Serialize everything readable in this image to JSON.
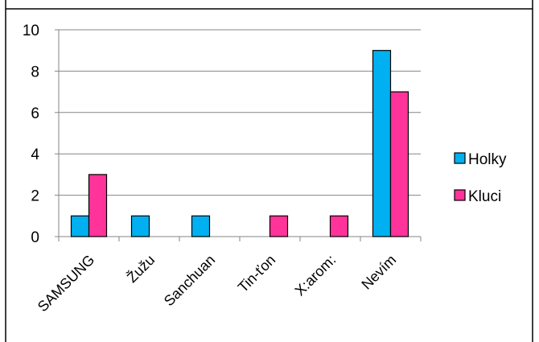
{
  "chart_data": {
    "type": "bar",
    "title": "",
    "xlabel": "",
    "ylabel": "",
    "categories": [
      "SAMSUNG",
      "Žužu",
      "Sanchuan",
      "Tin-ťon",
      "Χ:arom:",
      "Nevím"
    ],
    "series": [
      {
        "name": "Holky",
        "color": "#00B0F0",
        "values": [
          1,
          1,
          1,
          0,
          0,
          9
        ]
      },
      {
        "name": "Kluci",
        "color": "#FF3399",
        "values": [
          3,
          0,
          0,
          1,
          1,
          7
        ]
      }
    ],
    "ylim": [
      0,
      10
    ],
    "yticks": [
      0,
      2,
      4,
      6,
      8,
      10
    ],
    "grid": true,
    "legend_position": "right"
  }
}
